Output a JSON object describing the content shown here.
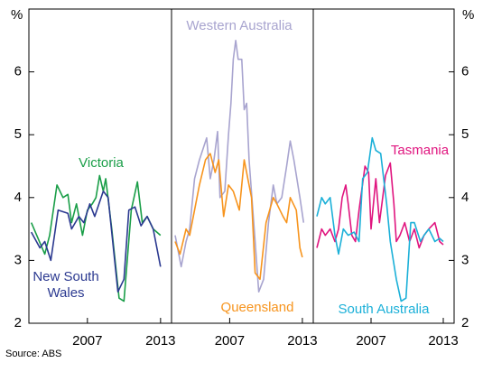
{
  "source": "Source: ABS",
  "chart_data": [
    {
      "type": "line",
      "ylabel": "%",
      "xlim": [
        2002.2,
        2013.9
      ],
      "xticks": [
        2007,
        2013
      ],
      "ylim": [
        2,
        7
      ],
      "yticks": [
        2,
        3,
        4,
        5,
        6
      ],
      "series": [
        {
          "name": "Victoria",
          "color": "#1a9e48",
          "x": [
            2002.4,
            2003.5,
            2003.9,
            2004.5,
            2005.0,
            2005.4,
            2005.7,
            2006.1,
            2006.6,
            2007.0,
            2007.4,
            2007.7,
            2008.0,
            2008.3,
            2008.5,
            2009.0,
            2009.6,
            2010.0,
            2010.6,
            2011.1,
            2011.5,
            2011.9,
            2012.4,
            2013.0
          ],
          "values": [
            3.6,
            3.1,
            3.4,
            4.2,
            4.0,
            4.05,
            3.6,
            3.9,
            3.4,
            3.8,
            3.9,
            4.0,
            4.35,
            4.1,
            4.3,
            3.5,
            2.4,
            2.35,
            3.8,
            4.25,
            3.6,
            3.7,
            3.5,
            3.4
          ]
        },
        {
          "name": "New South Wales",
          "color": "#2b3990",
          "x": [
            2002.4,
            2003.1,
            2003.5,
            2004.0,
            2004.6,
            2005.4,
            2005.7,
            2006.3,
            2006.7,
            2007.2,
            2007.6,
            2008.3,
            2008.7,
            2009.5,
            2010.0,
            2010.4,
            2010.9,
            2011.4,
            2011.9,
            2012.4,
            2013.0
          ],
          "values": [
            3.45,
            3.2,
            3.3,
            3.0,
            3.8,
            3.75,
            3.5,
            3.7,
            3.6,
            3.9,
            3.7,
            4.1,
            4.0,
            2.5,
            2.7,
            3.8,
            3.85,
            3.55,
            3.7,
            3.5,
            2.9
          ]
        }
      ]
    },
    {
      "type": "line",
      "xlim": [
        2002.2,
        2013.9
      ],
      "xticks": [
        2007,
        2013
      ],
      "ylim": [
        2,
        7
      ],
      "yticks": [
        2,
        3,
        4,
        5,
        6
      ],
      "series": [
        {
          "name": "Western Australia",
          "color": "#a8a4cf",
          "x": [
            2002.5,
            2003.0,
            2003.4,
            2003.7,
            2004.1,
            2004.5,
            2005.1,
            2005.4,
            2005.7,
            2006.0,
            2006.2,
            2006.6,
            2006.9,
            2007.1,
            2007.3,
            2007.5,
            2007.7,
            2008.0,
            2008.2,
            2008.4,
            2008.6,
            2009.1,
            2009.4,
            2009.8,
            2010.2,
            2010.6,
            2010.9,
            2011.3,
            2011.7,
            2012.0,
            2012.3,
            2012.8,
            2013.1
          ],
          "values": [
            3.4,
            2.9,
            3.3,
            3.5,
            4.3,
            4.6,
            4.95,
            4.3,
            4.6,
            5.05,
            4.0,
            4.1,
            5.0,
            5.5,
            6.2,
            6.5,
            6.2,
            6.2,
            5.4,
            5.5,
            4.6,
            3.3,
            2.5,
            2.7,
            3.6,
            4.2,
            3.9,
            4.0,
            4.5,
            4.9,
            4.6,
            4.0,
            3.6
          ]
        },
        {
          "name": "Queensland",
          "color": "#f7941d",
          "x": [
            2002.5,
            2002.9,
            2003.4,
            2003.7,
            2004.1,
            2004.5,
            2005.0,
            2005.4,
            2005.8,
            2006.1,
            2006.5,
            2006.9,
            2007.3,
            2007.8,
            2008.2,
            2008.5,
            2008.8,
            2009.1,
            2009.5,
            2010.0,
            2010.6,
            2010.9,
            2011.4,
            2011.7,
            2012.0,
            2012.5,
            2012.8,
            2013.0
          ],
          "values": [
            3.3,
            3.1,
            3.5,
            3.4,
            3.8,
            4.2,
            4.6,
            4.7,
            4.4,
            4.6,
            3.7,
            4.2,
            4.1,
            3.8,
            4.6,
            4.3,
            4.0,
            2.8,
            2.7,
            3.6,
            4.0,
            3.9,
            3.7,
            3.6,
            4.0,
            3.8,
            3.2,
            3.05
          ]
        }
      ]
    },
    {
      "type": "line",
      "ylabel": "%",
      "xlim": [
        2002.2,
        2013.9
      ],
      "xticks": [
        2007,
        2013
      ],
      "ylim": [
        2,
        7
      ],
      "yticks": [
        2,
        3,
        4,
        5,
        6
      ],
      "series": [
        {
          "name": "Tasmania",
          "color": "#e0157f",
          "x": [
            2002.5,
            2002.9,
            2003.2,
            2003.6,
            2004.0,
            2004.3,
            2004.6,
            2004.9,
            2005.1,
            2005.4,
            2005.7,
            2006.0,
            2006.5,
            2006.8,
            2007.0,
            2007.4,
            2007.7,
            2007.9,
            2008.2,
            2008.6,
            2008.9,
            2009.1,
            2009.4,
            2009.8,
            2010.2,
            2010.6,
            2011.0,
            2011.4,
            2011.8,
            2012.3,
            2012.7,
            2013.0
          ],
          "values": [
            3.2,
            3.5,
            3.4,
            3.5,
            3.3,
            3.5,
            4.0,
            4.2,
            3.9,
            3.4,
            3.3,
            3.8,
            4.5,
            4.4,
            3.5,
            4.3,
            3.6,
            3.9,
            4.35,
            4.55,
            3.9,
            3.3,
            3.4,
            3.6,
            3.3,
            3.5,
            3.2,
            3.4,
            3.5,
            3.6,
            3.3,
            3.25
          ]
        },
        {
          "name": "South Australia",
          "color": "#1bb0d8",
          "x": [
            2002.5,
            2002.9,
            2003.2,
            2003.6,
            2004.0,
            2004.3,
            2004.7,
            2005.1,
            2005.6,
            2006.0,
            2006.3,
            2006.7,
            2007.1,
            2007.4,
            2007.8,
            2008.3,
            2008.6,
            2009.1,
            2009.5,
            2009.9,
            2010.3,
            2010.6,
            2011.1,
            2011.4,
            2011.8,
            2012.3,
            2012.7,
            2013.0
          ],
          "values": [
            3.7,
            4.0,
            3.9,
            4.0,
            3.4,
            3.1,
            3.5,
            3.4,
            3.45,
            3.3,
            4.3,
            4.4,
            4.95,
            4.75,
            4.7,
            3.9,
            3.3,
            2.7,
            2.35,
            2.4,
            3.6,
            3.6,
            3.3,
            3.4,
            3.5,
            3.3,
            3.35,
            3.3
          ]
        }
      ]
    }
  ]
}
